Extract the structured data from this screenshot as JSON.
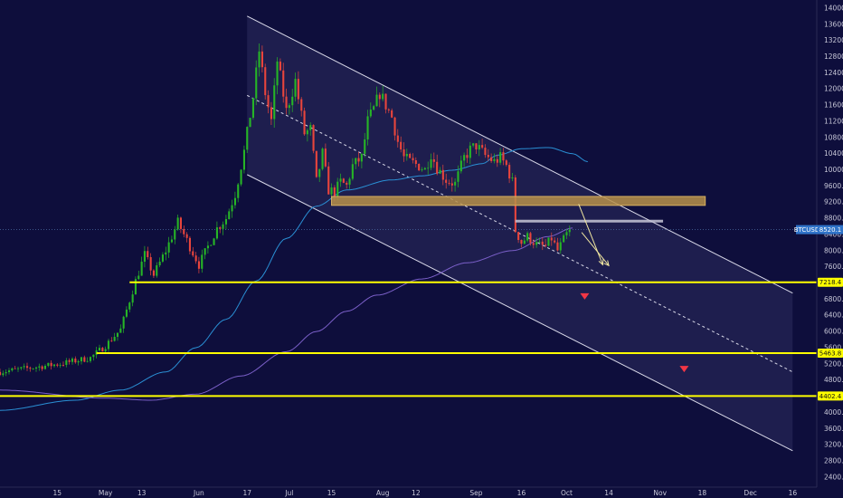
{
  "chart_data": {
    "type": "candlestick",
    "symbol": "BTCUSD",
    "current_price": "8520.1",
    "y_ticks": [
      "14000.0",
      "13600.0",
      "13200.0",
      "12800.0",
      "12400.0",
      "12000.0",
      "11600.0",
      "11200.0",
      "10800.0",
      "10400.0",
      "10000.0",
      "9600.0",
      "9200.0",
      "8800.0",
      "8400.0",
      "8000.0",
      "7600.0",
      "7200.0",
      "6800.0",
      "6400.0",
      "6000.0",
      "5600.0",
      "5200.0",
      "4800.0",
      "4400.0",
      "4000.0",
      "3600.0",
      "3200.0",
      "2800.0",
      "2400.0"
    ],
    "y_tick_values": [
      14000,
      13600,
      13200,
      12800,
      12400,
      12000,
      11600,
      11200,
      10800,
      10400,
      10000,
      9600,
      9200,
      8800,
      8400,
      8000,
      7600,
      7200,
      6800,
      6400,
      6000,
      5600,
      5200,
      4800,
      4400,
      4000,
      3600,
      3200,
      2800,
      2400
    ],
    "ylim": [
      2150,
      14200
    ],
    "x_ticks": [
      "15",
      "May",
      "13",
      "Jun",
      "17",
      "Jul",
      "15",
      "Aug",
      "12",
      "Sep",
      "16",
      "Oct",
      "14",
      "Nov",
      "18",
      "Dec",
      "16"
    ],
    "x_tick_days": [
      -16,
      0,
      12,
      31,
      47,
      61,
      75,
      92,
      103,
      123,
      138,
      153,
      167,
      184,
      198,
      214,
      228
    ],
    "x_range_days": [
      -35,
      236
    ],
    "levels": [
      {
        "label": "7218.4",
        "value": 7218.4,
        "from_day": 8
      },
      {
        "label": "5463.8",
        "value": 5463.8,
        "from_day": -3
      },
      {
        "label": "4402.4",
        "value": 4402.4,
        "from_day": -40
      }
    ],
    "resistance_zone": {
      "day_from": 75,
      "day_to": 199,
      "price_low": 9120,
      "price_high": 9340
    },
    "recent_high_line": {
      "day_from": 136,
      "day_to": 185,
      "price": 8730
    },
    "channel": {
      "upper": [
        [
          47,
          13800
        ],
        [
          228,
          6950
        ]
      ],
      "lower": [
        [
          47,
          9880
        ],
        [
          228,
          3050
        ]
      ],
      "mid": [
        [
          47,
          11840
        ],
        [
          228,
          5000
        ]
      ]
    },
    "projection_arrows": [
      {
        "from": [
          157,
          9150
        ],
        "to": [
          165,
          7650
        ]
      },
      {
        "from": [
          158,
          8450
        ],
        "to": [
          167,
          7630
        ]
      }
    ],
    "markers": [
      {
        "day": 159,
        "price": 6880,
        "shape": "down-triangle",
        "color": "#f23645"
      },
      {
        "day": 192,
        "price": 5080,
        "shape": "down-triangle",
        "color": "#f23645"
      }
    ],
    "ma_short_key": [
      [
        -35,
        4050
      ],
      [
        -10,
        4300
      ],
      [
        5,
        4550
      ],
      [
        20,
        5000
      ],
      [
        30,
        5600
      ],
      [
        40,
        6300
      ],
      [
        50,
        7250
      ],
      [
        60,
        8300
      ],
      [
        70,
        9100
      ],
      [
        80,
        9500
      ],
      [
        95,
        9750
      ],
      [
        105,
        9850
      ],
      [
        115,
        9990
      ],
      [
        125,
        10150
      ],
      [
        130,
        10360
      ],
      [
        138,
        10520
      ],
      [
        147,
        10550
      ],
      [
        155,
        10400
      ],
      [
        160,
        10200
      ]
    ],
    "ma_long_key": [
      [
        -35,
        4550
      ],
      [
        0,
        4350
      ],
      [
        15,
        4300
      ],
      [
        30,
        4450
      ],
      [
        45,
        4900
      ],
      [
        60,
        5500
      ],
      [
        70,
        6000
      ],
      [
        80,
        6500
      ],
      [
        90,
        6900
      ],
      [
        105,
        7300
      ],
      [
        120,
        7700
      ],
      [
        135,
        8000
      ],
      [
        147,
        8350
      ],
      [
        155,
        8560
      ]
    ],
    "colors": {
      "background": "#0e0e3c",
      "up": "#26b526",
      "down": "#e8453c",
      "level": "#ffff00",
      "zone": "#b7904a",
      "channel": "#d8d8e8",
      "ma_short": "#2a8fd4",
      "ma_long": "#7a5fc8",
      "price_badge": "#2f73c9"
    }
  }
}
